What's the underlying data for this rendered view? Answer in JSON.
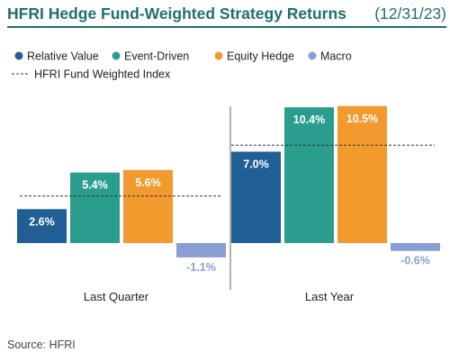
{
  "header": {
    "title": "HFRI Hedge Fund-Weighted Strategy Returns",
    "date": "(12/31/23)"
  },
  "legend": {
    "index_label": "HFRI Fund Weighted Index"
  },
  "colors": {
    "brand": "#1f6f6e",
    "relative_value": "#1f5f95",
    "event_driven": "#2a9d8f",
    "equity_hedge": "#f29a2e",
    "macro": "#8a9ed6"
  },
  "chart_data": {
    "type": "bar",
    "categories": [
      "Last Quarter",
      "Last Year"
    ],
    "series": [
      {
        "name": "Relative Value",
        "values": [
          2.6,
          7.0
        ],
        "labels": [
          "2.6%",
          "7.0%"
        ],
        "color": "#1f5f95"
      },
      {
        "name": "Event-Driven",
        "values": [
          5.4,
          10.4
        ],
        "labels": [
          "5.4%",
          "10.4%"
        ],
        "color": "#2a9d8f"
      },
      {
        "name": "Equity Hedge",
        "values": [
          5.6,
          10.5
        ],
        "labels": [
          "5.6%",
          "10.5%"
        ],
        "color": "#f29a2e"
      },
      {
        "name": "Macro",
        "values": [
          -1.1,
          -0.6
        ],
        "labels": [
          "-1.1%",
          "-0.6%"
        ],
        "color": "#8a9ed6"
      }
    ],
    "index_values": [
      3.6,
      7.5
    ],
    "ylim": [
      -2.4,
      10.6
    ],
    "grid": false,
    "legend_position": "top-left"
  },
  "footer": {
    "source": "Source: HFRI"
  }
}
